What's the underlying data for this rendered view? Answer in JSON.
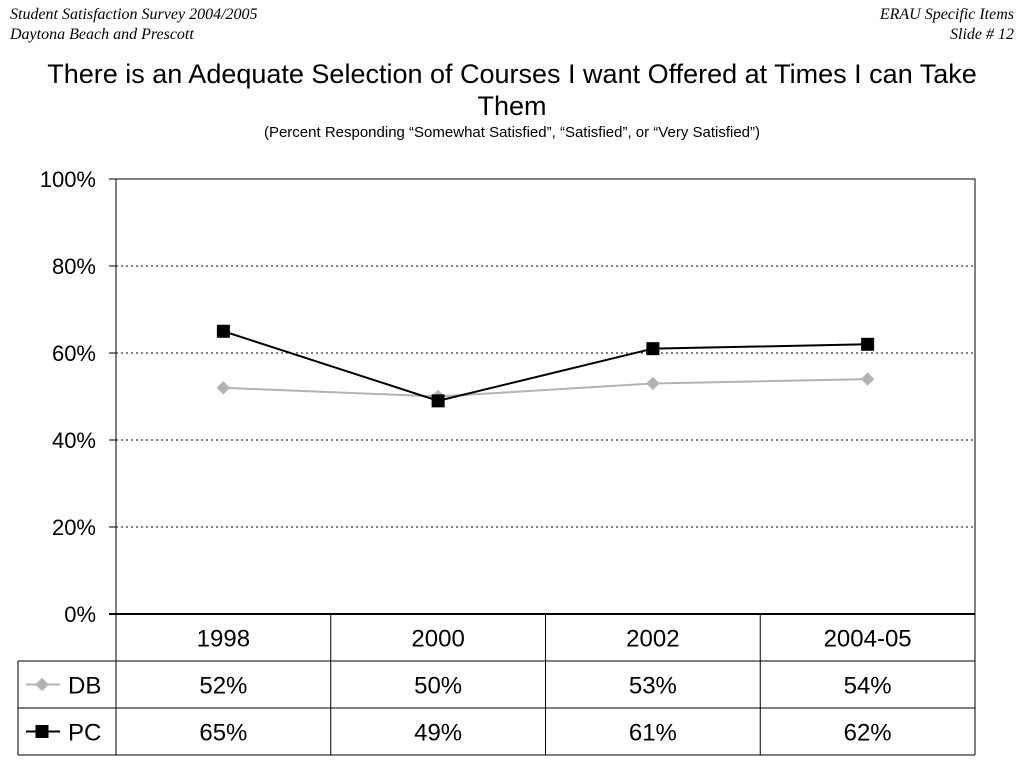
{
  "header": {
    "left_line1": "Student Satisfaction Survey 2004/2005",
    "left_line2": "Daytona Beach and Prescott",
    "right_line1": "ERAU Specific Items",
    "right_line2": "Slide # 12"
  },
  "chart_data": {
    "type": "line",
    "title": "There is an Adequate Selection of Courses I want Offered at Times I can Take Them",
    "subtitle": "(Percent Responding “Somewhat Satisfied”, “Satisfied”, or “Very Satisfied”)",
    "categories": [
      "1998",
      "2000",
      "2002",
      "2004-05"
    ],
    "series": [
      {
        "name": "DB",
        "values": [
          52,
          50,
          53,
          54
        ],
        "labels": [
          "52%",
          "50%",
          "53%",
          "54%"
        ],
        "color": "#b3b3b3",
        "marker": "diamond"
      },
      {
        "name": "PC",
        "values": [
          65,
          49,
          61,
          62
        ],
        "labels": [
          "65%",
          "49%",
          "61%",
          "62%"
        ],
        "color": "#000000",
        "marker": "square"
      }
    ],
    "yticks": [
      "0%",
      "20%",
      "40%",
      "60%",
      "80%",
      "100%"
    ],
    "ylim": [
      0,
      100
    ],
    "grid": true,
    "legend": "data-table"
  }
}
